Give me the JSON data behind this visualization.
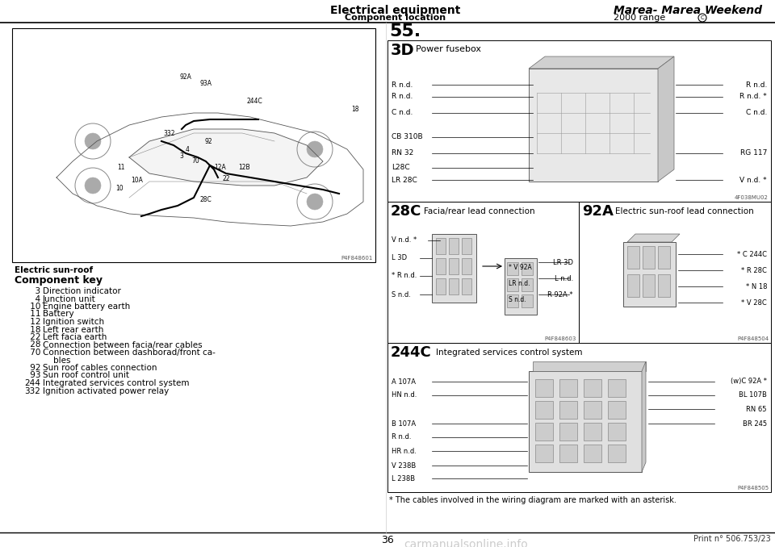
{
  "header_left_bold": "Electrical equipment",
  "header_left_sub": "Component location",
  "header_right_bold": "Marea- Marea Weekend",
  "header_right_sub": "2000 range",
  "page_number": "36",
  "print_ref": "Print n° 506.753/23",
  "section_number": "55.",
  "diagram_label": "Electric sun-roof",
  "component_key_title": "Component key",
  "components": [
    {
      "num": "3",
      "desc": "Direction indicator"
    },
    {
      "num": "4",
      "desc": "Junction unit"
    },
    {
      "num": "10",
      "desc": "Engine battery earth"
    },
    {
      "num": "11",
      "desc": "Battery"
    },
    {
      "num": "12",
      "desc": "Ignition switch"
    },
    {
      "num": "18",
      "desc": "Left rear earth"
    },
    {
      "num": "22",
      "desc": "Left facia earth"
    },
    {
      "num": "28",
      "desc": "Connection between facia/rear cables"
    },
    {
      "num": "70",
      "desc": "Connection between dashborad/front ca-",
      "desc2": "bles"
    },
    {
      "num": "92",
      "desc": "Sun roof cables connection"
    },
    {
      "num": "93",
      "desc": "Sun roof control unit"
    },
    {
      "num": "244",
      "desc": "Integrated services control system"
    },
    {
      "num": "332",
      "desc": "Ignition activated power relay"
    }
  ],
  "right_panel_3D_label": "3D",
  "right_panel_3D_title": "Power fusebox",
  "right_panel_28C_label": "28C",
  "right_panel_28C_title": "Facia/rear lead connection",
  "right_panel_92A_label": "92A",
  "right_panel_92A_title": "Electric sun-roof lead connection",
  "right_panel_244C_label": "244C",
  "right_panel_244C_title": "Integrated services control system",
  "footnote": "* The cables involved in the wiring diagram are marked with an asterisk.",
  "bg_color": "#ffffff",
  "text_color": "#000000",
  "panel_3D": {
    "labels_left": [
      "R n.d.",
      "R n.d.",
      "C n.d.",
      "CB 310B",
      "RN 32",
      "L28C",
      "LR 28C"
    ],
    "labels_right": [
      "R n.d.",
      "R n.d. *",
      "C n.d.",
      "",
      "RG 117",
      "",
      "V n.d. *"
    ],
    "photo_ref": "4F038MU02"
  },
  "panel_28C": {
    "labels_left": [
      "L 3D",
      "* R n.d.",
      "S n.d."
    ],
    "label_top": "V n.d. *",
    "labels_inner_left": [
      "* V 92A",
      "LR n.d.",
      "S n.d."
    ],
    "labels_inner_right": [
      "LR 3D",
      "L n.d.",
      "R 92A *"
    ],
    "photo_ref": "P4F848603"
  },
  "panel_92A": {
    "labels_right": [
      "* C 244C",
      "* R 28C",
      "* N 18",
      "* V 28C"
    ],
    "photo_ref": "P4F848504"
  },
  "panel_244C": {
    "labels_left": [
      "A 107A",
      "HN n.d.",
      "B 107A",
      "R n.d.",
      "HR n.d.",
      "V 238B",
      "L 238B"
    ],
    "labels_right": [
      "(w)C 92A *",
      "BL 107B",
      "RN 65",
      "BR 245"
    ],
    "photo_ref": "P4F848505"
  }
}
